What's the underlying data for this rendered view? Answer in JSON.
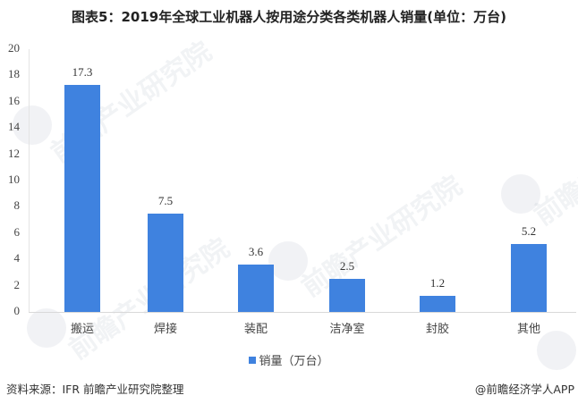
{
  "title": "图表5：2019年全球工业机器人按用途分类各类机器人销量(单位：万台)",
  "chart_data": {
    "type": "bar",
    "title": "图表5：2019年全球工业机器人按用途分类各类机器人销量(单位：万台)",
    "categories": [
      "搬运",
      "焊接",
      "装配",
      "洁净室",
      "封胶",
      "其他"
    ],
    "series": [
      {
        "name": "销量（万台）",
        "values": [
          17.3,
          7.5,
          3.6,
          2.5,
          1.2,
          5.2
        ],
        "color": "#3f82df"
      }
    ],
    "xlabel": "",
    "ylabel": "",
    "ylim": [
      0,
      20
    ],
    "yticks": [
      0,
      2,
      4,
      6,
      8,
      10,
      12,
      14,
      16,
      18,
      20
    ],
    "grid": false,
    "legend_position": "bottom",
    "data_labels": [
      "17.3",
      "7.5",
      "3.6",
      "2.5",
      "1.2",
      "5.2"
    ]
  },
  "legend": {
    "label": "销量（万台）"
  },
  "footer": {
    "source": "资料来源：IFR 前瞻产业研究院整理",
    "credit": "@前瞻经济学人APP"
  },
  "watermark": {
    "text": "前瞻产业研究院"
  }
}
